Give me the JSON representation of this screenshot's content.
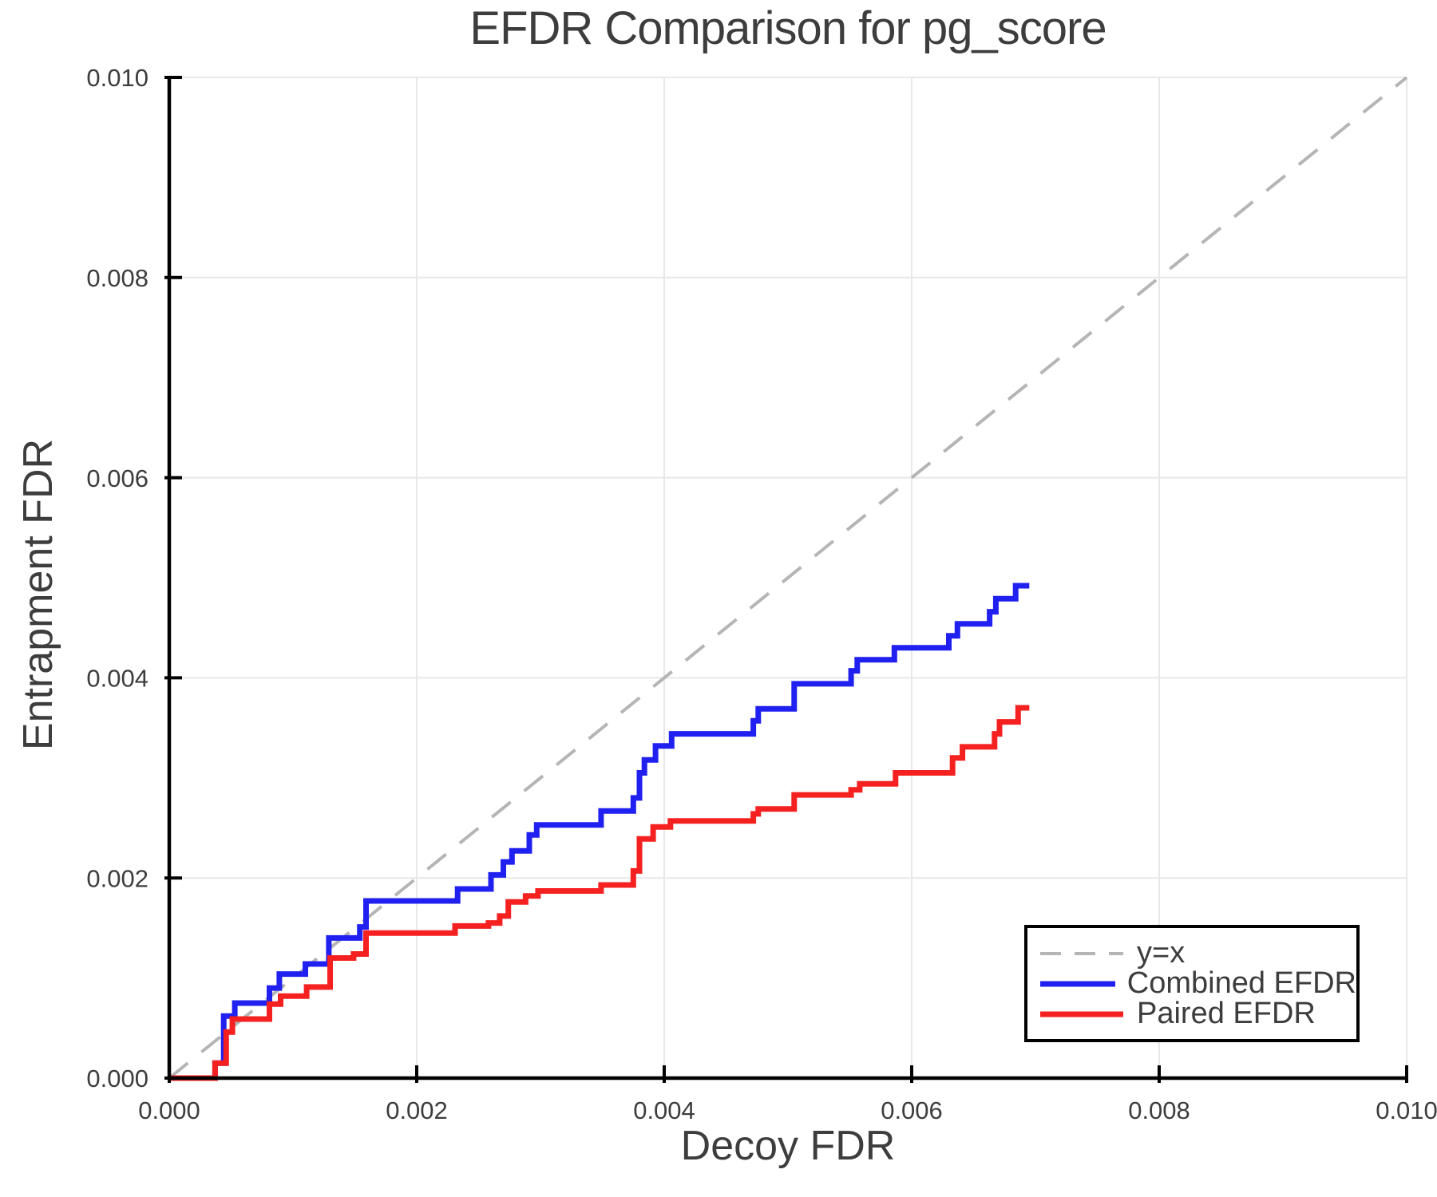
{
  "title": "EFDR Comparison for pg_score",
  "colors": {
    "background": "#ffffff",
    "text": "#3d3d3d",
    "spine": "#000000",
    "grid": "#e8e8e8",
    "identity": "#b5b5b5",
    "combined": "#2020f0",
    "paired": "#f52020"
  },
  "axes": {
    "xlabel": "Decoy FDR",
    "ylabel": "Entrapment FDR",
    "xtick_values": [
      0.0,
      0.002,
      0.004,
      0.006,
      0.008,
      0.01
    ],
    "xtick_labels": [
      "0.000",
      "0.002",
      "0.004",
      "0.006",
      "0.008",
      "0.010"
    ],
    "ytick_values": [
      0.0,
      0.002,
      0.004,
      0.006,
      0.008,
      0.01
    ],
    "ytick_labels": [
      "0.000",
      "0.002",
      "0.004",
      "0.006",
      "0.008",
      "0.010"
    ]
  },
  "legend": {
    "items": [
      {
        "label": "y=x",
        "color_key": "identity",
        "style": "dashed"
      },
      {
        "label": "Combined EFDR",
        "color_key": "combined",
        "style": "solid"
      },
      {
        "label": "Paired EFDR",
        "color_key": "paired",
        "style": "solid"
      }
    ]
  },
  "chart_data": {
    "type": "line",
    "step": "post",
    "title": "EFDR Comparison for pg_score",
    "xlabel": "Decoy FDR",
    "ylabel": "Entrapment FDR",
    "xlim": [
      0.0,
      0.01
    ],
    "ylim": [
      0.0,
      0.01
    ],
    "grid": true,
    "legend_position": "lower right",
    "series": [
      {
        "name": "y=x",
        "style": "dashed",
        "color_key": "identity",
        "points": [
          [
            0.0,
            0.0
          ],
          [
            0.01,
            0.01
          ]
        ]
      },
      {
        "name": "Combined EFDR",
        "style": "step",
        "color_key": "combined",
        "points": [
          [
            0.0,
            0.0
          ],
          [
            0.00037,
            0.00015
          ],
          [
            0.00044,
            0.00062
          ],
          [
            0.00053,
            0.00075
          ],
          [
            0.00081,
            0.0009
          ],
          [
            0.00089,
            0.00104
          ],
          [
            0.0011,
            0.00114
          ],
          [
            0.00129,
            0.0014
          ],
          [
            0.00154,
            0.00151
          ],
          [
            0.00159,
            0.00177
          ],
          [
            0.00233,
            0.00189
          ],
          [
            0.0026,
            0.00203
          ],
          [
            0.0027,
            0.00216
          ],
          [
            0.00277,
            0.00227
          ],
          [
            0.00291,
            0.00243
          ],
          [
            0.00297,
            0.00253
          ],
          [
            0.00349,
            0.00267
          ],
          [
            0.00375,
            0.0028
          ],
          [
            0.0038,
            0.00305
          ],
          [
            0.00384,
            0.00318
          ],
          [
            0.00393,
            0.00332
          ],
          [
            0.00406,
            0.00344
          ],
          [
            0.00472,
            0.00357
          ],
          [
            0.00476,
            0.00369
          ],
          [
            0.00505,
            0.00394
          ],
          [
            0.00551,
            0.00407
          ],
          [
            0.00556,
            0.00418
          ],
          [
            0.00586,
            0.0043
          ],
          [
            0.0063,
            0.00442
          ],
          [
            0.00637,
            0.00454
          ],
          [
            0.00663,
            0.00466
          ],
          [
            0.00668,
            0.00479
          ],
          [
            0.00684,
            0.00492
          ],
          [
            0.00695,
            0.00492
          ]
        ]
      },
      {
        "name": "Paired EFDR",
        "style": "step",
        "color_key": "paired",
        "points": [
          [
            0.0,
            0.0
          ],
          [
            0.00037,
            0.00015
          ],
          [
            0.00046,
            0.00046
          ],
          [
            0.00051,
            0.00059
          ],
          [
            0.00081,
            0.00074
          ],
          [
            0.0009,
            0.00082
          ],
          [
            0.00111,
            0.00091
          ],
          [
            0.0013,
            0.0012
          ],
          [
            0.00149,
            0.00124
          ],
          [
            0.00159,
            0.00145
          ],
          [
            0.00231,
            0.00152
          ],
          [
            0.00258,
            0.00155
          ],
          [
            0.00267,
            0.00162
          ],
          [
            0.00274,
            0.00176
          ],
          [
            0.00288,
            0.00182
          ],
          [
            0.00298,
            0.00187
          ],
          [
            0.00349,
            0.00193
          ],
          [
            0.00375,
            0.00207
          ],
          [
            0.0038,
            0.00239
          ],
          [
            0.00391,
            0.00251
          ],
          [
            0.00405,
            0.00257
          ],
          [
            0.00472,
            0.00264
          ],
          [
            0.00476,
            0.00269
          ],
          [
            0.00505,
            0.00283
          ],
          [
            0.00551,
            0.00288
          ],
          [
            0.00558,
            0.00294
          ],
          [
            0.00587,
            0.00305
          ],
          [
            0.00633,
            0.0032
          ],
          [
            0.00641,
            0.00331
          ],
          [
            0.00667,
            0.00344
          ],
          [
            0.00671,
            0.00356
          ],
          [
            0.00686,
            0.0037
          ],
          [
            0.00695,
            0.0037
          ]
        ]
      }
    ]
  }
}
